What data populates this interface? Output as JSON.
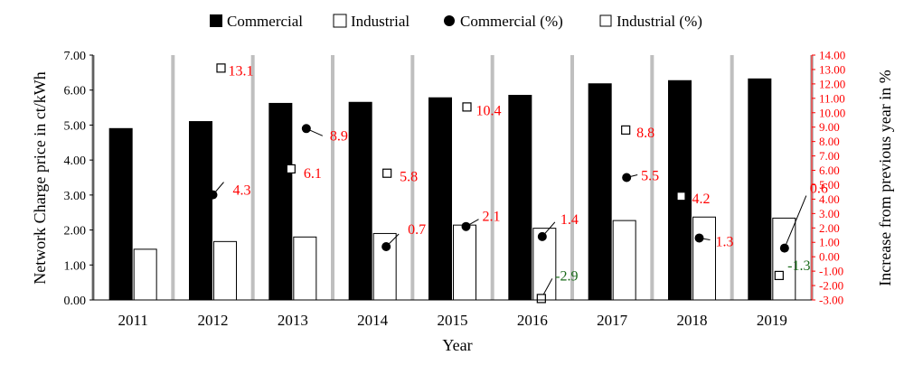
{
  "chart_data": {
    "type": "bar",
    "categories": [
      "2011",
      "2012",
      "2013",
      "2014",
      "2015",
      "2016",
      "2017",
      "2018",
      "2019"
    ],
    "xlabel": "Year",
    "ylabel": "Network Charge price in ct/kWh",
    "y2label": "Increase from previous year in %",
    "ylim": [
      0,
      7
    ],
    "y2lim": [
      -3,
      14
    ],
    "yticks": [
      "0.00",
      "1.00",
      "2.00",
      "3.00",
      "4.00",
      "5.00",
      "6.00",
      "7.00"
    ],
    "y2ticks": [
      "-3.00",
      "-2.00",
      "-1.00",
      "0.00",
      "1.00",
      "2.00",
      "3.00",
      "4.00",
      "5.00",
      "6.00",
      "7.00",
      "8.00",
      "9.00",
      "10.00",
      "11.00",
      "12.00",
      "13.00",
      "14.00"
    ],
    "legend_position": "top",
    "bar_series": [
      {
        "name": "Commercial",
        "values": [
          4.9,
          5.1,
          5.62,
          5.65,
          5.78,
          5.85,
          6.18,
          6.27,
          6.32
        ]
      },
      {
        "name": "Industrial",
        "values": [
          1.45,
          1.67,
          1.8,
          1.9,
          2.14,
          2.05,
          2.27,
          2.37,
          2.34
        ]
      }
    ],
    "pct_series": [
      {
        "name": "Commercial (%)",
        "marker": "circle",
        "values": [
          null,
          4.3,
          8.9,
          0.7,
          2.1,
          1.4,
          5.5,
          1.3,
          0.6
        ]
      },
      {
        "name": "Industrial (%)",
        "marker": "square",
        "values": [
          null,
          13.1,
          6.1,
          5.8,
          10.4,
          -2.9,
          8.8,
          4.2,
          -1.3
        ]
      }
    ],
    "annotations": [
      {
        "text": "4.3",
        "color": "red"
      },
      {
        "text": "8.9",
        "color": "red"
      },
      {
        "text": "0.7",
        "color": "red"
      },
      {
        "text": "2.1",
        "color": "red"
      },
      {
        "text": "1.4",
        "color": "red"
      },
      {
        "text": "5.5",
        "color": "red"
      },
      {
        "text": "1.3",
        "color": "red"
      },
      {
        "text": "0.6",
        "color": "red"
      },
      {
        "text": "13.1",
        "color": "red"
      },
      {
        "text": "6.1",
        "color": "red"
      },
      {
        "text": "5.8",
        "color": "red"
      },
      {
        "text": "10.4",
        "color": "red"
      },
      {
        "text": "-2.9",
        "color": "green"
      },
      {
        "text": "8.8",
        "color": "red"
      },
      {
        "text": "4.2",
        "color": "red"
      },
      {
        "text": "-1.3",
        "color": "green"
      }
    ],
    "colors": {
      "commercial_bar": "#000000",
      "industrial_bar": "#ffffff",
      "separator": "#bfbfbf",
      "right_axis": "#ff0000",
      "positive_label": "#ff0000",
      "negative_label": "#1a6b1a"
    }
  }
}
